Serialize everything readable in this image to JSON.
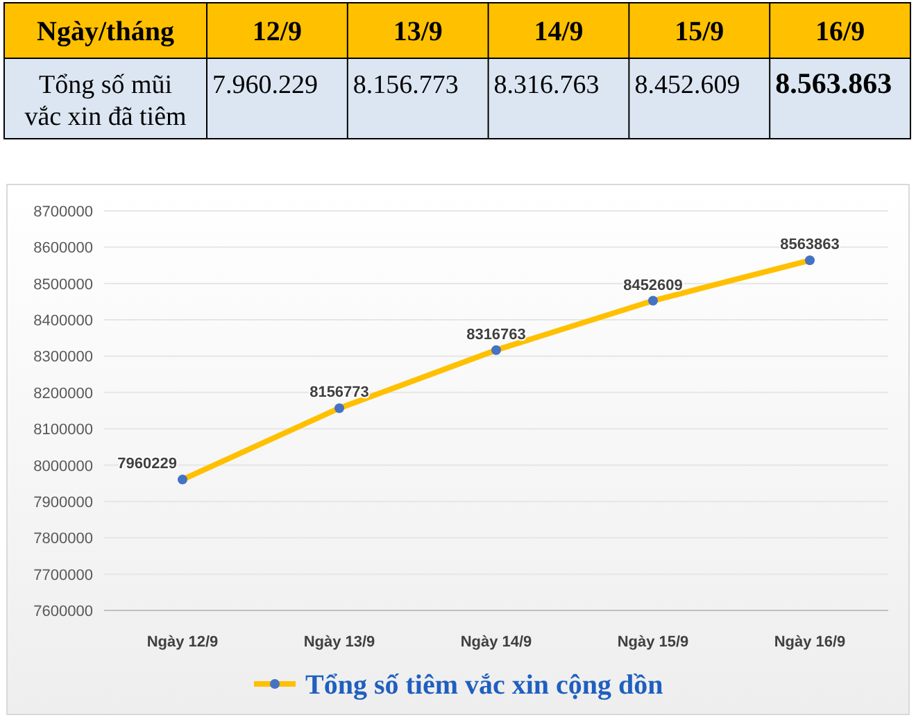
{
  "chart_data": [
    {
      "type": "other",
      "xlabel": "Ngày/tháng",
      "categories": [
        "12/9",
        "13/9",
        "14/9",
        "15/9",
        "16/9"
      ],
      "ylabel": "Tổng số mũi vắc xin đã tiêm",
      "values": [
        7960229,
        8156773,
        8316763,
        8452609,
        8563863
      ],
      "value_labels": [
        "7.960.229",
        "8.156.773",
        "8.316.763",
        "8.452.609",
        "8.563.863"
      ]
    },
    {
      "type": "line",
      "categories": [
        "Ngày 12/9",
        "Ngày 13/9",
        "Ngày 14/9",
        "Ngày 15/9",
        "Ngày 16/9"
      ],
      "series": [
        {
          "name": "Tổng số tiêm vắc xin cộng dồn",
          "color": "#ffc000",
          "values": [
            7960229,
            8156773,
            8316763,
            8452609,
            8563863
          ]
        }
      ],
      "ylim": [
        7600000,
        8700000
      ],
      "yticks": [
        7600000,
        7700000,
        7800000,
        7900000,
        8000000,
        8100000,
        8200000,
        8300000,
        8400000,
        8500000,
        8600000,
        8700000
      ],
      "grid": "y",
      "data_labels": true,
      "marker": "circle",
      "legend": "bottom"
    }
  ]
}
